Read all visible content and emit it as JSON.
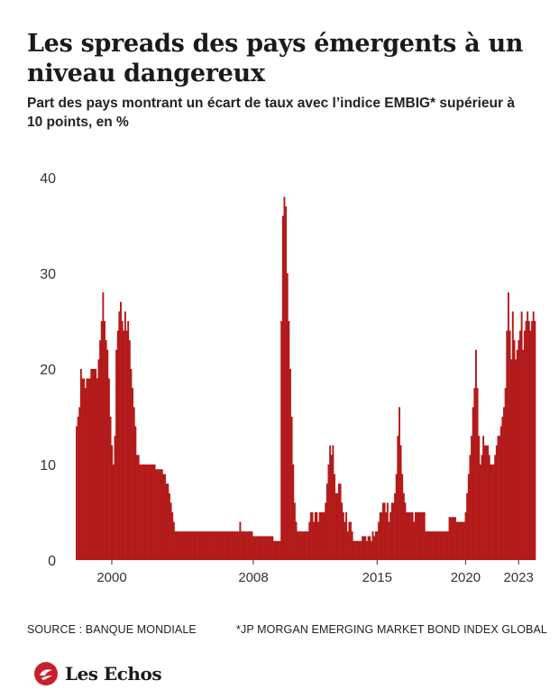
{
  "title": "Les spreads des pays émergents à un niveau dangereux",
  "subtitle": "Part des pays montrant un écart de taux avec l’indice EMBIG* supérieur à 10 points, en %",
  "source": "SOURCE : BANQUE MONDIALE",
  "note": "*JP MORGAN EMERGING MARKET BOND INDEX GLOBAL",
  "brand": {
    "name": "Les Echos",
    "logo_icon": "les-echos-logo-icon"
  },
  "colors": {
    "bars": "#b31b1b",
    "accent": "#c8202a",
    "text": "#1a1a1a"
  },
  "chart_data": {
    "type": "bar",
    "title": "Les spreads des pays émergents à un niveau dangereux",
    "ylabel": "",
    "xlabel": "",
    "ylim": [
      0,
      40
    ],
    "yticks": [
      0,
      10,
      20,
      30,
      40
    ],
    "xticks": [
      "2000",
      "2008",
      "2015",
      "2020",
      "2023"
    ],
    "grid": false,
    "x_start": "1998-01",
    "x_end": "2023-12",
    "frequency": "monthly",
    "values": [
      14,
      15,
      16,
      20,
      19,
      19,
      18,
      19,
      19,
      19,
      20,
      20,
      20,
      20,
      19,
      21,
      23,
      25,
      28,
      25,
      23,
      22,
      19,
      15,
      12,
      10,
      13,
      22,
      24,
      26,
      27,
      25,
      24,
      26,
      24,
      25,
      23,
      20,
      18,
      16,
      14,
      11,
      11,
      10,
      10,
      10,
      10,
      10,
      10,
      10,
      10,
      10,
      10,
      10,
      9.5,
      9.5,
      9.5,
      9.5,
      9.5,
      9,
      9,
      8,
      8,
      7,
      6,
      5,
      4,
      3,
      3,
      3,
      3,
      3,
      3,
      3,
      3,
      3,
      3,
      3,
      3,
      3,
      3,
      3,
      3,
      3,
      3,
      3,
      3,
      3,
      3,
      3,
      3,
      3,
      3,
      3,
      3,
      3,
      3,
      3,
      3,
      3,
      3,
      3,
      3,
      3,
      3,
      3,
      3,
      3,
      3,
      3,
      3,
      4,
      3,
      3,
      3,
      3,
      3,
      3,
      3,
      3,
      2.5,
      2.5,
      2.5,
      2.5,
      2.5,
      2.5,
      2.5,
      2.5,
      2.5,
      2.5,
      2.5,
      2.5,
      2.5,
      2.5,
      2,
      2,
      2,
      2,
      2,
      25,
      36,
      38,
      37,
      30,
      25,
      20,
      15,
      10,
      6,
      4,
      3,
      3,
      3,
      3,
      3,
      3,
      3,
      3,
      4,
      5,
      5,
      4,
      5,
      5,
      4,
      5,
      5,
      5,
      5,
      6,
      8,
      10,
      12,
      11,
      12,
      9,
      7,
      7,
      8,
      8,
      6,
      5,
      4,
      5,
      3,
      4,
      4,
      3,
      2,
      2,
      2,
      2,
      2,
      2,
      2.5,
      2.5,
      2.5,
      2,
      2.5,
      2.5,
      2,
      3,
      2.5,
      3,
      3,
      4,
      5,
      5,
      6,
      6,
      5,
      6,
      4,
      5,
      6,
      6,
      7,
      9,
      13,
      16,
      12,
      9,
      7,
      6,
      5,
      5,
      5,
      5,
      5,
      4,
      5,
      5,
      5,
      5,
      5,
      5,
      5,
      3,
      3,
      3,
      3,
      3,
      3,
      3,
      3,
      3,
      3,
      3,
      3,
      3,
      3,
      3,
      3,
      4.5,
      4.5,
      4.5,
      4.5,
      4.5,
      4,
      4,
      4,
      4,
      4,
      4,
      5,
      7,
      9,
      11,
      13,
      16,
      18,
      22,
      18,
      13,
      10,
      11,
      13,
      12,
      12,
      12,
      11,
      10,
      10,
      10,
      11,
      12,
      13,
      13,
      14,
      15,
      16,
      18,
      24,
      28,
      24,
      21,
      26,
      23,
      21,
      22,
      23,
      24,
      26,
      22,
      24,
      25,
      26,
      25,
      24,
      25,
      26,
      25
    ]
  }
}
